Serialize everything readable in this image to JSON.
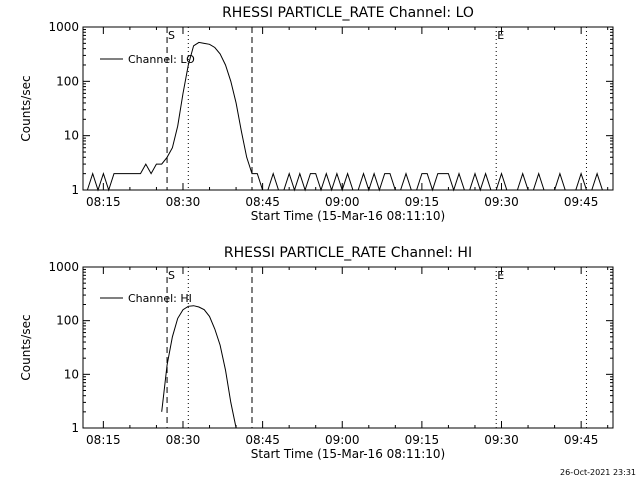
{
  "footer": {
    "timestamp": "26-Oct-2021 23:31"
  },
  "chart_data": [
    {
      "type": "line",
      "title": "RHESSI PARTICLE_RATE Channel: LO",
      "xlabel": "Start Time (15-Mar-16 08:11:10)",
      "ylabel": "Counts/sec",
      "yscale": "log",
      "ylim": [
        1,
        1000
      ],
      "xlim": [
        "08:11:10",
        "09:51:00"
      ],
      "x_ticks": [
        "08:15",
        "08:30",
        "08:45",
        "09:00",
        "09:15",
        "09:30",
        "09:45"
      ],
      "y_ticks": [
        "1",
        "10",
        "100",
        "1000"
      ],
      "legend": {
        "position": "top-left"
      },
      "markers": [
        {
          "label": "S",
          "x": "08:27",
          "style": "dashed"
        },
        {
          "x": "08:31",
          "style": "dotted"
        },
        {
          "x": "08:43",
          "style": "dashed"
        },
        {
          "label": "E",
          "x": "09:29",
          "style": "dotted"
        },
        {
          "x": "09:46",
          "style": "dotted"
        }
      ],
      "series": [
        {
          "name": "Channel: LO",
          "x": [
            "08:12",
            "08:13",
            "08:14",
            "08:15",
            "08:16",
            "08:17",
            "08:18",
            "08:19",
            "08:20",
            "08:21",
            "08:22",
            "08:23",
            "08:24",
            "08:25",
            "08:26",
            "08:27",
            "08:28",
            "08:29",
            "08:30",
            "08:31",
            "08:32",
            "08:33",
            "08:34",
            "08:35",
            "08:36",
            "08:37",
            "08:38",
            "08:39",
            "08:40",
            "08:41",
            "08:42",
            "08:43",
            "08:44",
            "08:45",
            "08:46",
            "08:47",
            "08:48",
            "08:49",
            "08:50",
            "08:51",
            "08:52",
            "08:53",
            "08:54",
            "08:55",
            "08:56",
            "08:57",
            "08:58",
            "08:59",
            "09:00",
            "09:01",
            "09:02",
            "09:03",
            "09:04",
            "09:05",
            "09:06",
            "09:07",
            "09:08",
            "09:09",
            "09:10",
            "09:11",
            "09:12",
            "09:13",
            "09:14",
            "09:15",
            "09:16",
            "09:17",
            "09:18",
            "09:19",
            "09:20",
            "09:21",
            "09:22",
            "09:23",
            "09:24",
            "09:25",
            "09:26",
            "09:27",
            "09:28",
            "09:29",
            "09:30",
            "09:31",
            "09:32",
            "09:33",
            "09:34",
            "09:35",
            "09:36",
            "09:37",
            "09:38",
            "09:39",
            "09:40",
            "09:41",
            "09:42",
            "09:43",
            "09:44",
            "09:45",
            "09:46",
            "09:47",
            "09:48",
            "09:49",
            "09:50"
          ],
          "y": [
            1,
            2,
            1,
            2,
            1,
            2,
            2,
            2,
            2,
            2,
            2,
            3,
            2,
            3,
            3,
            4,
            6,
            15,
            60,
            200,
            450,
            520,
            500,
            480,
            420,
            320,
            200,
            100,
            40,
            12,
            4,
            2,
            2,
            1,
            1,
            2,
            1,
            1,
            2,
            1,
            2,
            1,
            2,
            2,
            1,
            2,
            1,
            2,
            1,
            2,
            1,
            1,
            2,
            1,
            2,
            1,
            2,
            2,
            1,
            1,
            2,
            1,
            1,
            2,
            2,
            1,
            2,
            2,
            2,
            1,
            2,
            1,
            1,
            2,
            1,
            2,
            1,
            1,
            2,
            1,
            1,
            1,
            2,
            1,
            1,
            2,
            1,
            1,
            1,
            2,
            1,
            1,
            1,
            2,
            1,
            1,
            2,
            1,
            1
          ]
        }
      ]
    },
    {
      "type": "line",
      "title": "RHESSI PARTICLE_RATE Channel: HI",
      "xlabel": "Start Time (15-Mar-16 08:11:10)",
      "ylabel": "Counts/sec",
      "yscale": "log",
      "ylim": [
        1,
        1000
      ],
      "xlim": [
        "08:11:10",
        "09:51:00"
      ],
      "x_ticks": [
        "08:15",
        "08:30",
        "08:45",
        "09:00",
        "09:15",
        "09:30",
        "09:45"
      ],
      "y_ticks": [
        "1",
        "10",
        "100",
        "1000"
      ],
      "legend": {
        "position": "top-left"
      },
      "markers": [
        {
          "label": "S",
          "x": "08:27",
          "style": "dashed"
        },
        {
          "x": "08:31",
          "style": "dotted"
        },
        {
          "x": "08:43",
          "style": "dashed"
        },
        {
          "label": "E",
          "x": "09:29",
          "style": "dotted"
        },
        {
          "x": "09:46",
          "style": "dotted"
        }
      ],
      "series": [
        {
          "name": "Channel: HI",
          "x": [
            "08:26",
            "08:27",
            "08:28",
            "08:29",
            "08:30",
            "08:31",
            "08:32",
            "08:33",
            "08:34",
            "08:35",
            "08:36",
            "08:37",
            "08:38",
            "08:39",
            "08:40"
          ],
          "y": [
            2,
            15,
            50,
            110,
            160,
            185,
            190,
            180,
            160,
            120,
            70,
            35,
            12,
            3,
            1
          ]
        }
      ]
    }
  ]
}
